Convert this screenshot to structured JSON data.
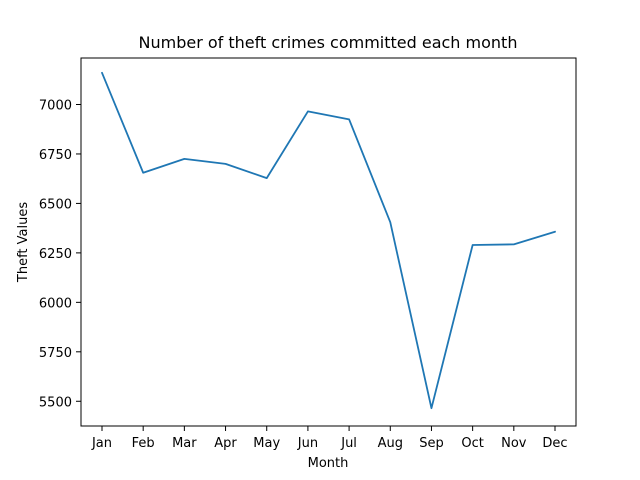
{
  "chart_data": {
    "type": "line",
    "title": "Number of theft crimes committed each month",
    "xlabel": "Month",
    "ylabel": "Theft Values",
    "categories": [
      "Jan",
      "Feb",
      "Mar",
      "Apr",
      "May",
      "Jun",
      "Jul",
      "Aug",
      "Sep",
      "Oct",
      "Nov",
      "Dec"
    ],
    "series": [
      {
        "color": "#1f77b4",
        "values": [
          7160,
          6655,
          6725,
          6700,
          6628,
          6965,
          6925,
          6405,
          5465,
          6290,
          6293,
          6357
        ]
      }
    ],
    "ylim": [
      5375,
      7235
    ],
    "yticks": [
      5500,
      5750,
      6000,
      6250,
      6500,
      6750,
      7000
    ],
    "grid": false,
    "legend": "none"
  }
}
